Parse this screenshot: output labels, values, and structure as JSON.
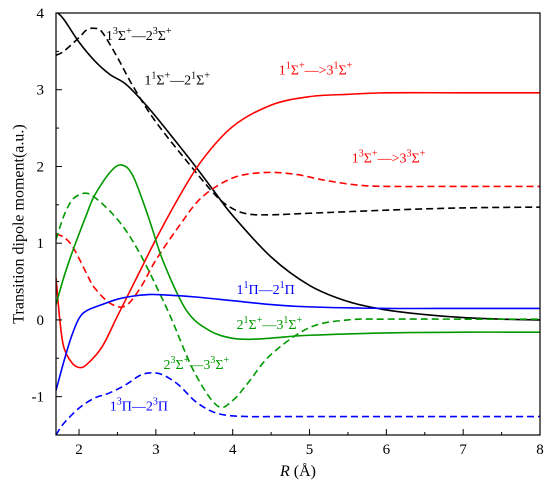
{
  "chart_data": {
    "type": "line",
    "xlabel": "R (Å)",
    "ylabel": "Transition dipole moment(a.u.)",
    "xlim": [
      1.7,
      8
    ],
    "ylim": [
      -1.5,
      4
    ],
    "xticks": [
      2,
      3,
      4,
      5,
      6,
      7,
      8
    ],
    "xtick_labels": [
      "2",
      "3",
      "4",
      "5",
      "6",
      "7",
      "8"
    ],
    "yticks": [
      -1,
      0,
      1,
      2,
      3,
      4
    ],
    "ytick_labels": [
      "-1",
      "0",
      "1",
      "2",
      "3",
      "4"
    ],
    "grid": false,
    "legend": "none",
    "series": [
      {
        "name": "1¹Σ⁺—2¹Σ⁺",
        "color": "#000000",
        "dash": "solid",
        "x": [
          1.7,
          1.8,
          2.0,
          2.2,
          2.4,
          2.6,
          2.8,
          3.0,
          3.2,
          3.5,
          3.8,
          4.0,
          4.5,
          5.0,
          5.5,
          6.0,
          6.5,
          7.0,
          7.5,
          8.0
        ],
        "y": [
          4.02,
          3.92,
          3.62,
          3.38,
          3.2,
          3.08,
          2.88,
          2.65,
          2.4,
          2.02,
          1.62,
          1.36,
          0.82,
          0.45,
          0.24,
          0.13,
          0.07,
          0.03,
          0.01,
          0.0
        ]
      },
      {
        "name": "1³Σ⁺—2³Σ⁺",
        "color": "#000000",
        "dash": "dashed",
        "x": [
          1.7,
          1.8,
          2.0,
          2.1,
          2.2,
          2.3,
          2.5,
          2.7,
          3.0,
          3.5,
          3.8,
          4.0,
          4.2,
          4.5,
          5.0,
          6.0,
          7.0,
          8.0
        ],
        "y": [
          3.45,
          3.5,
          3.68,
          3.78,
          3.8,
          3.75,
          3.42,
          3.05,
          2.58,
          1.95,
          1.6,
          1.45,
          1.38,
          1.37,
          1.39,
          1.43,
          1.46,
          1.47
        ]
      },
      {
        "name": "1¹Σ⁺—>3¹Σ⁺",
        "color": "#ff0000",
        "dash": "solid",
        "x": [
          1.7,
          1.75,
          1.8,
          1.9,
          2.0,
          2.1,
          2.3,
          2.5,
          2.8,
          3.0,
          3.3,
          3.6,
          4.0,
          4.5,
          5.0,
          5.5,
          6.0,
          7.0,
          8.0
        ],
        "y": [
          0.55,
          0.0,
          -0.35,
          -0.55,
          -0.62,
          -0.58,
          -0.35,
          0.05,
          0.65,
          1.05,
          1.6,
          2.08,
          2.52,
          2.8,
          2.91,
          2.94,
          2.96,
          2.96,
          2.96
        ]
      },
      {
        "name": "1³Σ⁺—>3³Σ⁺",
        "color": "#ff0000",
        "dash": "dashed",
        "x": [
          1.7,
          1.8,
          1.9,
          2.0,
          2.1,
          2.2,
          2.4,
          2.6,
          2.8,
          3.0,
          3.3,
          3.6,
          4.0,
          4.4,
          4.8,
          5.2,
          5.6,
          6.0,
          7.0,
          8.0
        ],
        "y": [
          1.12,
          1.08,
          0.98,
          0.8,
          0.6,
          0.42,
          0.22,
          0.18,
          0.42,
          0.78,
          1.22,
          1.6,
          1.85,
          1.92,
          1.9,
          1.82,
          1.76,
          1.74,
          1.74,
          1.74
        ]
      },
      {
        "name": "2¹Σ⁺—3¹Σ⁺",
        "color": "#009900",
        "dash": "solid",
        "x": [
          1.7,
          1.8,
          1.9,
          2.0,
          2.1,
          2.2,
          2.4,
          2.55,
          2.7,
          2.9,
          3.1,
          3.4,
          3.7,
          4.0,
          4.3,
          4.7,
          5.0,
          6.0,
          7.0,
          8.0
        ],
        "y": [
          0.2,
          0.55,
          0.85,
          1.12,
          1.38,
          1.62,
          1.92,
          2.02,
          1.88,
          1.35,
          0.75,
          0.12,
          -0.14,
          -0.24,
          -0.25,
          -0.22,
          -0.2,
          -0.17,
          -0.16,
          -0.16
        ]
      },
      {
        "name": "2³Σ⁺—3³Σ⁺",
        "color": "#009900",
        "dash": "dashed",
        "x": [
          1.7,
          1.8,
          1.9,
          2.0,
          2.1,
          2.2,
          2.4,
          2.6,
          2.8,
          3.0,
          3.2,
          3.5,
          3.8,
          4.0,
          4.2,
          4.5,
          5.0,
          5.5,
          6.0,
          7.0,
          8.0
        ],
        "y": [
          1.05,
          1.35,
          1.55,
          1.63,
          1.65,
          1.6,
          1.42,
          1.18,
          0.85,
          0.45,
          0.02,
          -0.68,
          -1.12,
          -1.05,
          -0.82,
          -0.45,
          -0.1,
          0.0,
          0.01,
          0.01,
          0.01
        ]
      },
      {
        "name": "1¹Π—2¹Π",
        "color": "#0000ff",
        "dash": "solid",
        "x": [
          1.7,
          1.8,
          1.9,
          2.0,
          2.1,
          2.3,
          2.5,
          2.7,
          2.9,
          3.0,
          3.2,
          3.5,
          4.0,
          4.5,
          5.0,
          6.0,
          7.0,
          8.0
        ],
        "y": [
          -0.92,
          -0.55,
          -0.22,
          0.02,
          0.12,
          0.2,
          0.27,
          0.31,
          0.33,
          0.33,
          0.32,
          0.3,
          0.25,
          0.2,
          0.17,
          0.15,
          0.15,
          0.15
        ]
      },
      {
        "name": "1³Π—2³Π",
        "color": "#0000ff",
        "dash": "dashed",
        "x": [
          1.7,
          1.8,
          2.0,
          2.2,
          2.4,
          2.6,
          2.8,
          2.95,
          3.1,
          3.3,
          3.5,
          3.7,
          3.9,
          4.2,
          4.5,
          5.0,
          6.0,
          7.0,
          8.0
        ],
        "y": [
          -1.5,
          -1.35,
          -1.15,
          -1.02,
          -0.95,
          -0.85,
          -0.72,
          -0.69,
          -0.72,
          -0.85,
          -1.05,
          -1.18,
          -1.24,
          -1.26,
          -1.26,
          -1.26,
          -1.26,
          -1.26,
          -1.26
        ]
      }
    ],
    "annotations": [
      {
        "base": "1",
        "sup1": "3",
        "mid": "Σ",
        "sup2": "+",
        "dash": "—",
        "base2": "2",
        "sup3": "3",
        "mid2": "Σ",
        "sup4": "+",
        "color": "#000000",
        "x": 2.35,
        "y": 3.65
      },
      {
        "base": "1",
        "sup1": "1",
        "mid": "Σ",
        "sup2": "+",
        "dash": "—",
        "base2": "2",
        "sup3": "1",
        "mid2": "Σ",
        "sup4": "+",
        "color": "#000000",
        "x": 2.85,
        "y": 3.07
      },
      {
        "base": "1",
        "sup1": "1",
        "mid": "Σ",
        "sup2": "+",
        "dash": "—>",
        "base2": "3",
        "sup3": "1",
        "mid2": "Σ",
        "sup4": "+",
        "color": "#ff0000",
        "x": 4.6,
        "y": 3.2
      },
      {
        "base": "1",
        "sup1": "3",
        "mid": "Σ",
        "sup2": "+",
        "dash": "—>",
        "base2": "3",
        "sup3": "3",
        "mid2": "Σ",
        "sup4": "+",
        "color": "#ff0000",
        "x": 5.55,
        "y": 2.05
      },
      {
        "base": "1",
        "sup1": "1",
        "mid": "Π",
        "sup2": "",
        "dash": "—",
        "base2": "2",
        "sup3": "1",
        "mid2": "Π",
        "sup4": "",
        "color": "#0000ff",
        "x": 4.05,
        "y": 0.34
      },
      {
        "base": "2",
        "sup1": "1",
        "mid": "Σ",
        "sup2": "+",
        "dash": "—",
        "base2": "3",
        "sup3": "1",
        "mid2": "Σ",
        "sup4": "+",
        "color": "#009900",
        "x": 4.05,
        "y": -0.12
      },
      {
        "base": "2",
        "sup1": "3",
        "mid": "Σ",
        "sup2": "+",
        "dash": "—",
        "base2": "3",
        "sup3": "3",
        "mid2": "Σ",
        "sup4": "+",
        "color": "#009900",
        "x": 3.1,
        "y": -0.64
      },
      {
        "base": "1",
        "sup1": "3",
        "mid": "Π",
        "sup2": "",
        "dash": "—",
        "base2": "2",
        "sup3": "3",
        "mid2": "Π",
        "sup4": "",
        "color": "#0000ff",
        "x": 2.4,
        "y": -1.18
      }
    ]
  }
}
